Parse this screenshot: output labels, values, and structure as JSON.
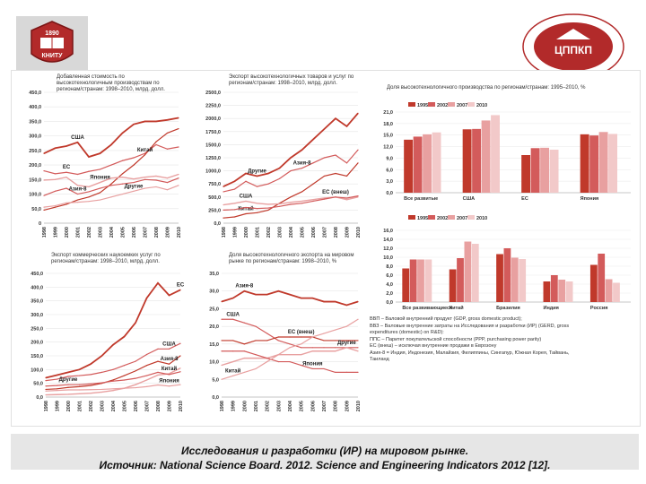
{
  "logo_left": {
    "year": "1890",
    "text": "КНИТУ"
  },
  "logo_right": {
    "text": "ЦППКП"
  },
  "caption": {
    "line1": "Исследования и разработки (ИР) на мировом рынке.",
    "line2": "Источник: National Science Board. 2012. Science and Engineering Indicators 2012 [12]."
  },
  "notes": [
    "ВВП – Валовой внутренний продукт (GDP, gross domestic product);",
    "ВВЗ – Валовые внутренние затраты на Исследования и разработки (ИР) (GERD, gross",
    "expenditures (domestic) on R&D):",
    "ППС – Паритет покупательской способности (PPP, purchasing power parity)",
    "ЕС (внеш) – исключая внутренние продажи в Еврозону",
    "Азия-8 = Индия, Индонезия, Малайзия, Филиппины, Сингапур, Южная Корея, Тайвань,",
    "Таиланд"
  ],
  "colors": {
    "dark": "#c0392b",
    "mid": "#d35b5b",
    "light": "#e8a0a0",
    "pale": "#f2c9c9"
  },
  "chart_data": [
    {
      "type": "line",
      "title": "Добавленная стоимость по высокотехнологичным производствам по регионам/странам: 1998–2010, млрд. долл.",
      "x": [
        "1998",
        "1999",
        "2000",
        "2001",
        "2002",
        "2003",
        "2004",
        "2005",
        "2006",
        "2007",
        "2008",
        "2009",
        "2010"
      ],
      "ylim": [
        0,
        450
      ],
      "yticks": [
        "0",
        "50,0",
        "100,0",
        "150,0",
        "200,0",
        "250,0",
        "300,0",
        "350,0",
        "400,0",
        "450,0"
      ],
      "series": [
        {
          "name": "США",
          "values": [
            240,
            258,
            265,
            278,
            228,
            240,
            270,
            310,
            340,
            350,
            350,
            355,
            362
          ]
        },
        {
          "name": "ЕС",
          "values": [
            180,
            170,
            175,
            168,
            178,
            185,
            200,
            215,
            225,
            240,
            270,
            255,
            262
          ]
        },
        {
          "name": "Китай",
          "values": [
            45,
            55,
            65,
            80,
            90,
            105,
            135,
            170,
            200,
            235,
            280,
            310,
            325
          ]
        },
        {
          "name": "Япония",
          "values": [
            148,
            150,
            158,
            130,
            125,
            140,
            155,
            158,
            152,
            158,
            162,
            155,
            168
          ]
        },
        {
          "name": "Азия-8",
          "values": [
            95,
            110,
            120,
            100,
            108,
            120,
            130,
            135,
            140,
            150,
            148,
            140,
            155
          ]
        },
        {
          "name": "Другие",
          "values": [
            55,
            60,
            70,
            72,
            75,
            80,
            90,
            100,
            110,
            120,
            125,
            115,
            130
          ]
        }
      ]
    },
    {
      "type": "line",
      "title": "Экспорт высокотехнологичных товаров и услуг по регионам/странам: 1998–2010, млрд. долл.",
      "x": [
        "1998",
        "1999",
        "2000",
        "2001",
        "2002",
        "2003",
        "2004",
        "2005",
        "2006",
        "2007",
        "2008",
        "2009",
        "2010"
      ],
      "ylim": [
        0,
        2500
      ],
      "yticks": [
        "0,0",
        "250,0",
        "500,0",
        "750,0",
        "1000,0",
        "1250,0",
        "1500,0",
        "1750,0",
        "2000,0",
        "2250,0",
        "2500,0"
      ],
      "series": [
        {
          "name": "Другие",
          "values": [
            700,
            800,
            950,
            900,
            950,
            1050,
            1250,
            1400,
            1600,
            1800,
            2000,
            1850,
            2100
          ]
        },
        {
          "name": "Азия-8",
          "values": [
            600,
            650,
            800,
            700,
            750,
            850,
            1000,
            1050,
            1150,
            1250,
            1300,
            1150,
            1400
          ]
        },
        {
          "name": "Китай",
          "values": [
            100,
            120,
            180,
            200,
            250,
            380,
            500,
            600,
            750,
            900,
            950,
            900,
            1150
          ]
        },
        {
          "name": "США",
          "values": [
            350,
            380,
            420,
            380,
            360,
            370,
            400,
            420,
            450,
            480,
            500,
            450,
            500
          ]
        },
        {
          "name": "ЕС (внеш)",
          "values": [
            250,
            260,
            300,
            280,
            290,
            320,
            360,
            380,
            420,
            460,
            500,
            480,
            520
          ]
        }
      ]
    },
    {
      "type": "bar",
      "title": "Доля высокотехнологичного производства по регионам/странам: 1995–2010, %",
      "categories": [
        "Все развитые",
        "США",
        "ЕС",
        "Япония"
      ],
      "legend": [
        "1995",
        "2002",
        "2007",
        "2010"
      ],
      "ylim": [
        0,
        21
      ],
      "yticks": [
        "0,0",
        "3,0",
        "6,0",
        "9,0",
        "12,0",
        "15,0",
        "18,0",
        "21,0"
      ],
      "series": [
        {
          "name": "1995",
          "values": [
            13.8,
            16.5,
            9.8,
            15.2
          ]
        },
        {
          "name": "2002",
          "values": [
            14.6,
            16.6,
            11.6,
            14.9
          ]
        },
        {
          "name": "2007",
          "values": [
            15.2,
            18.8,
            11.7,
            15.8
          ]
        },
        {
          "name": "2010",
          "values": [
            15.7,
            20.2,
            11.2,
            15.3
          ]
        }
      ]
    },
    {
      "type": "line",
      "title": "Экспорт коммерческих наукоемких услуг по регионам/странам: 1998–2010, млрд. долл.",
      "x": [
        "1998",
        "1999",
        "2000",
        "2001",
        "2002",
        "2003",
        "2004",
        "2005",
        "2006",
        "2007",
        "2008",
        "2009",
        "2010"
      ],
      "ylim": [
        0,
        450
      ],
      "yticks": [
        "0,0",
        "50,0",
        "100,0",
        "150,0",
        "200,0",
        "250,0",
        "300,0",
        "350,0",
        "400,0",
        "450,0"
      ],
      "series": [
        {
          "name": "ЕС",
          "values": [
            70,
            80,
            90,
            100,
            120,
            150,
            190,
            220,
            270,
            360,
            415,
            370,
            390
          ]
        },
        {
          "name": "США",
          "values": [
            60,
            65,
            75,
            78,
            82,
            90,
            100,
            115,
            130,
            155,
            175,
            175,
            195
          ]
        },
        {
          "name": "Азия-8",
          "values": [
            28,
            30,
            35,
            38,
            42,
            50,
            62,
            78,
            95,
            115,
            130,
            120,
            150
          ]
        },
        {
          "name": "Китай",
          "values": [
            8,
            9,
            10,
            12,
            14,
            18,
            24,
            32,
            45,
            62,
            80,
            85,
            105
          ]
        },
        {
          "name": "Другие",
          "values": [
            40,
            42,
            45,
            45,
            48,
            52,
            58,
            62,
            68,
            78,
            90,
            82,
            92
          ]
        },
        {
          "name": "Япония",
          "values": [
            22,
            24,
            26,
            26,
            27,
            28,
            30,
            32,
            34,
            38,
            44,
            40,
            45
          ]
        }
      ]
    },
    {
      "type": "line",
      "title": "Доля высокотехнологичного экспорта на мировом рынке по регионам/странам: 1998–2010, %",
      "x": [
        "1998",
        "1999",
        "2000",
        "2001",
        "2002",
        "2003",
        "2004",
        "2005",
        "2006",
        "2007",
        "2008",
        "2009",
        "2010"
      ],
      "ylim": [
        0,
        35
      ],
      "yticks": [
        "0,0",
        "5,0",
        "10,0",
        "15,0",
        "20,0",
        "25,0",
        "30,0",
        "35,0"
      ],
      "series": [
        {
          "name": "Азия-8",
          "values": [
            27,
            28,
            30,
            29,
            29,
            30,
            29,
            28,
            28,
            27,
            27,
            26,
            27
          ]
        },
        {
          "name": "США",
          "values": [
            22,
            22,
            21,
            20,
            18,
            16,
            15,
            14,
            14,
            14,
            14,
            14,
            14
          ]
        },
        {
          "name": "ЕС (внеш)",
          "values": [
            16,
            16,
            15,
            16,
            16,
            17,
            17,
            17,
            17,
            16,
            16,
            16,
            16
          ]
        },
        {
          "name": "Другие",
          "values": [
            9,
            10,
            11,
            11,
            11,
            12,
            12,
            12,
            13,
            13,
            13,
            14,
            13
          ]
        },
        {
          "name": "Япония",
          "values": [
            13,
            13,
            13,
            12,
            11,
            10,
            10,
            9,
            8,
            8,
            7,
            7,
            7
          ]
        },
        {
          "name": "Китай",
          "values": [
            5,
            6,
            7,
            8,
            10,
            12,
            14,
            15,
            17,
            18,
            19,
            20,
            22
          ]
        }
      ]
    },
    {
      "type": "bar",
      "title": "",
      "categories": [
        "Все развивающиеся",
        "Китай",
        "Бразилия",
        "Индия",
        "Россия"
      ],
      "legend": [
        "1995",
        "2002",
        "2007",
        "2010"
      ],
      "ylim": [
        0,
        16
      ],
      "yticks": [
        "0,0",
        "2,0",
        "4,0",
        "6,0",
        "8,0",
        "10,0",
        "12,0",
        "14,0",
        "16,0"
      ],
      "series": [
        {
          "name": "1995",
          "values": [
            7.5,
            7.3,
            10.7,
            4.6,
            8.3
          ]
        },
        {
          "name": "2002",
          "values": [
            9.5,
            9.8,
            12.0,
            6.0,
            10.8
          ]
        },
        {
          "name": "2007",
          "values": [
            9.5,
            13.5,
            9.9,
            5.0,
            5.1
          ]
        },
        {
          "name": "2010",
          "values": [
            9.5,
            13.0,
            9.6,
            4.6,
            4.3
          ]
        }
      ]
    }
  ]
}
